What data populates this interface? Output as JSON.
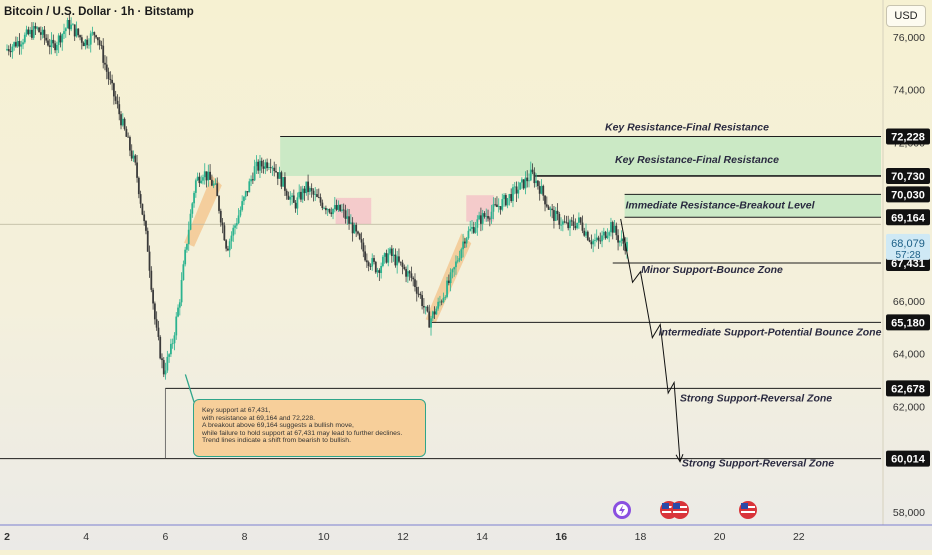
{
  "header": {
    "title": "Bitcoin / U.S. Dollar · 1h · Bitstamp",
    "currency_button": "USD"
  },
  "note": {
    "lines": [
      "Key support at 67,431,",
      " with resistance at 69,164 and 72,228.",
      " A breakout above 69,164 suggests a bullish move,",
      "while failure to hold support at 67,431 may lead to further declines.",
      "Trend lines indicate a shift from bearish to bullish."
    ]
  },
  "colors": {
    "background_top": "#f6f1d4",
    "background_bottom": "#ecebe6",
    "candle_up": "#2bb38f",
    "candle_down": "#3a3a3a",
    "zone_fill": "#c6e8c3",
    "price_tag": "#111111",
    "current_tag": "#cfe9f5",
    "highlight_orange": "#f2b26b",
    "highlight_pink": "#f3b2c2"
  },
  "chart_data": {
    "type": "candlestick",
    "symbol": "Bitcoin / U.S. Dollar",
    "interval": "1h",
    "exchange": "Bitstamp",
    "y_axis": {
      "range": [
        57500,
        77400
      ],
      "ticks": [
        58000,
        60000,
        62000,
        64000,
        66000,
        68000,
        70000,
        72000,
        74000,
        76000
      ],
      "tick_labels": [
        "58,000",
        "60,000",
        "62,000",
        "64,000",
        "66,000",
        "68,000",
        "70,000",
        "72,000",
        "74,000",
        "76,000"
      ]
    },
    "x_axis": {
      "range": [
        2,
        24
      ],
      "ticks": [
        2,
        4,
        6,
        8,
        10,
        12,
        14,
        16,
        18,
        20,
        22
      ],
      "tick_labels": [
        "2",
        "4",
        "6",
        "8",
        "10",
        "12",
        "14",
        "16",
        "18",
        "20",
        "22"
      ],
      "bold_ticks": [
        2,
        16
      ]
    },
    "price_path": [
      [
        2.0,
        75500
      ],
      [
        2.4,
        75900
      ],
      [
        2.8,
        76300
      ],
      [
        3.2,
        75600
      ],
      [
        3.6,
        76500
      ],
      [
        4.0,
        75800
      ],
      [
        4.3,
        76200
      ],
      [
        4.6,
        74500
      ],
      [
        5.0,
        72500
      ],
      [
        5.3,
        71000
      ],
      [
        5.6,
        68000
      ],
      [
        5.8,
        65000
      ],
      [
        6.0,
        63300
      ],
      [
        6.2,
        64200
      ],
      [
        6.4,
        66000
      ],
      [
        6.6,
        68400
      ],
      [
        6.8,
        70500
      ],
      [
        7.0,
        70900
      ],
      [
        7.3,
        70300
      ],
      [
        7.6,
        68000
      ],
      [
        8.0,
        69700
      ],
      [
        8.3,
        71000
      ],
      [
        8.7,
        71300
      ],
      [
        9.0,
        70500
      ],
      [
        9.3,
        69600
      ],
      [
        9.6,
        70300
      ],
      [
        9.9,
        69800
      ],
      [
        10.2,
        69500
      ],
      [
        10.5,
        69400
      ],
      [
        10.8,
        68700
      ],
      [
        11.1,
        67700
      ],
      [
        11.4,
        67200
      ],
      [
        11.7,
        67800
      ],
      [
        12.0,
        67300
      ],
      [
        12.3,
        66800
      ],
      [
        12.5,
        66100
      ],
      [
        12.7,
        65200
      ],
      [
        13.0,
        66000
      ],
      [
        13.3,
        67000
      ],
      [
        13.6,
        68400
      ],
      [
        14.0,
        69100
      ],
      [
        14.3,
        69400
      ],
      [
        14.7,
        69900
      ],
      [
        15.0,
        70300
      ],
      [
        15.3,
        70800
      ],
      [
        15.5,
        70300
      ],
      [
        15.8,
        69300
      ],
      [
        16.2,
        68800
      ],
      [
        16.5,
        69000
      ],
      [
        16.8,
        68300
      ],
      [
        17.0,
        68200
      ],
      [
        17.3,
        68900
      ],
      [
        17.5,
        68300
      ],
      [
        17.7,
        68079
      ]
    ],
    "current_price": {
      "value": "68,079",
      "countdown": "57:28"
    },
    "levels": [
      {
        "price": 72228,
        "label": "72,228"
      },
      {
        "price": 70730,
        "label": "70,730"
      },
      {
        "price": 70030,
        "label": "70,030"
      },
      {
        "price": 69164,
        "label": "69,164"
      },
      {
        "price": 67431,
        "label": "67,431"
      },
      {
        "price": 65180,
        "label": "65,180"
      },
      {
        "price": 62678,
        "label": "62,678"
      },
      {
        "price": 60014,
        "label": "60,014"
      }
    ],
    "zones": [
      {
        "top": 72228,
        "bottom": 70730,
        "label": "Key Resistance-Final Resistance"
      },
      {
        "top": 70030,
        "bottom": 69164,
        "label": "Key Resistance-Final Resistance"
      }
    ],
    "annotations": [
      {
        "text": "Immediate Resistance-Breakout Level",
        "price": 69164
      },
      {
        "text": "Minor Support-Bounce Zone",
        "price": 67431
      },
      {
        "text": "Intermediate Support-Potential Bounce Zone",
        "price": 65180
      },
      {
        "text": "Strong Support-Reversal Zone",
        "price": 62678
      },
      {
        "text": "Strong Support-Reversal Zone",
        "price": 60014
      }
    ],
    "projection": [
      [
        17.5,
        69100
      ],
      [
        17.8,
        66700
      ],
      [
        18.0,
        67100
      ],
      [
        18.3,
        64600
      ],
      [
        18.5,
        65100
      ],
      [
        18.7,
        62500
      ],
      [
        18.85,
        62900
      ],
      [
        19.0,
        59900
      ]
    ]
  }
}
